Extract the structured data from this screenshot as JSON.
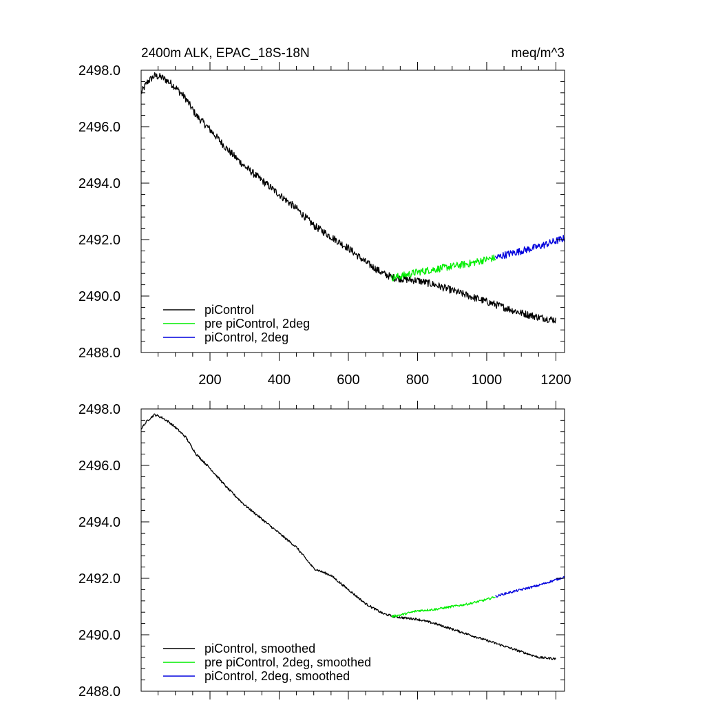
{
  "figure": {
    "title_left": "2400m ALK, EPAC_18S-18N",
    "title_right": "meq/m^3"
  },
  "colors": {
    "piControl": "#000000",
    "pre_piControl_2deg": "#00ee00",
    "piControl_2deg": "#0000dd"
  },
  "chart_data": [
    {
      "type": "line",
      "title": "2400m ALK, EPAC_18S-18N",
      "units": "meq/m^3",
      "xlabel": "",
      "ylabel": "",
      "xlim": [
        1,
        1225
      ],
      "ylim": [
        2488.0,
        2498.0
      ],
      "x_ticks": [
        200,
        400,
        600,
        800,
        1000,
        1200
      ],
      "x_tick_labels": [
        "200",
        "400",
        "600",
        "800",
        "1000",
        "1200"
      ],
      "y_ticks": [
        2488.0,
        2490.0,
        2492.0,
        2494.0,
        2496.0,
        2498.0
      ],
      "y_tick_labels": [
        "2488.0",
        "2490.0",
        "2492.0",
        "2494.0",
        "2496.0",
        "2498.0"
      ],
      "legend_position": "bottom-left",
      "noise": 0.13,
      "series": [
        {
          "name": "piControl",
          "color_key": "piControl",
          "x": [
            1,
            20,
            40,
            60,
            80,
            100,
            130,
            160,
            200,
            250,
            300,
            350,
            400,
            450,
            500,
            550,
            600,
            650,
            700,
            730,
            760,
            800,
            850,
            900,
            950,
            1000,
            1050,
            1100,
            1150,
            1200
          ],
          "y": [
            2497.2,
            2497.6,
            2497.8,
            2497.75,
            2497.6,
            2497.4,
            2497.0,
            2496.4,
            2495.9,
            2495.2,
            2494.6,
            2494.1,
            2493.6,
            2493.1,
            2492.5,
            2492.1,
            2491.7,
            2491.2,
            2490.8,
            2490.65,
            2490.6,
            2490.55,
            2490.4,
            2490.2,
            2490.0,
            2489.8,
            2489.6,
            2489.4,
            2489.25,
            2489.15
          ]
        },
        {
          "name": "pre piControl, 2deg",
          "color_key": "pre_piControl_2deg",
          "x": [
            725,
            750,
            800,
            850,
            900,
            950,
            1000,
            1025
          ],
          "y": [
            2490.65,
            2490.7,
            2490.85,
            2490.95,
            2491.05,
            2491.15,
            2491.3,
            2491.35
          ]
        },
        {
          "name": "piControl, 2deg",
          "color_key": "piControl_2deg",
          "x": [
            1025,
            1050,
            1100,
            1150,
            1200,
            1225
          ],
          "y": [
            2491.35,
            2491.45,
            2491.6,
            2491.75,
            2491.95,
            2492.05
          ]
        }
      ]
    },
    {
      "type": "line",
      "title": "",
      "xlabel": "",
      "ylabel": "",
      "xlim": [
        1,
        1225
      ],
      "ylim": [
        2488.0,
        2498.0
      ],
      "x_ticks": [
        200,
        400,
        600,
        800,
        1000,
        1200
      ],
      "x_tick_labels": [],
      "y_ticks": [
        2488.0,
        2490.0,
        2492.0,
        2494.0,
        2496.0,
        2498.0
      ],
      "y_tick_labels": [
        "2488.0",
        "2490.0",
        "2492.0",
        "2494.0",
        "2496.0",
        "2498.0"
      ],
      "legend_position": "bottom-left",
      "noise": 0.04,
      "series": [
        {
          "name": "piControl, smoothed",
          "color_key": "piControl",
          "x": [
            1,
            20,
            40,
            60,
            80,
            100,
            130,
            160,
            200,
            250,
            300,
            350,
            400,
            450,
            500,
            550,
            600,
            650,
            700,
            730,
            760,
            800,
            850,
            900,
            950,
            1000,
            1050,
            1100,
            1150,
            1200
          ],
          "y": [
            2497.3,
            2497.6,
            2497.8,
            2497.7,
            2497.55,
            2497.35,
            2497.0,
            2496.4,
            2495.9,
            2495.2,
            2494.6,
            2494.1,
            2493.6,
            2493.1,
            2492.35,
            2492.1,
            2491.6,
            2491.1,
            2490.75,
            2490.65,
            2490.6,
            2490.55,
            2490.4,
            2490.2,
            2490.0,
            2489.8,
            2489.6,
            2489.4,
            2489.2,
            2489.15
          ]
        },
        {
          "name": "pre piControl, 2deg, smoothed",
          "color_key": "pre_piControl_2deg",
          "x": [
            725,
            750,
            800,
            850,
            900,
            950,
            1000,
            1025
          ],
          "y": [
            2490.65,
            2490.7,
            2490.85,
            2490.9,
            2491.0,
            2491.1,
            2491.25,
            2491.35
          ]
        },
        {
          "name": "piControl, 2deg, smoothed",
          "color_key": "piControl_2deg",
          "x": [
            1025,
            1050,
            1100,
            1150,
            1200,
            1225
          ],
          "y": [
            2491.35,
            2491.45,
            2491.6,
            2491.75,
            2491.95,
            2492.05
          ]
        }
      ]
    }
  ]
}
